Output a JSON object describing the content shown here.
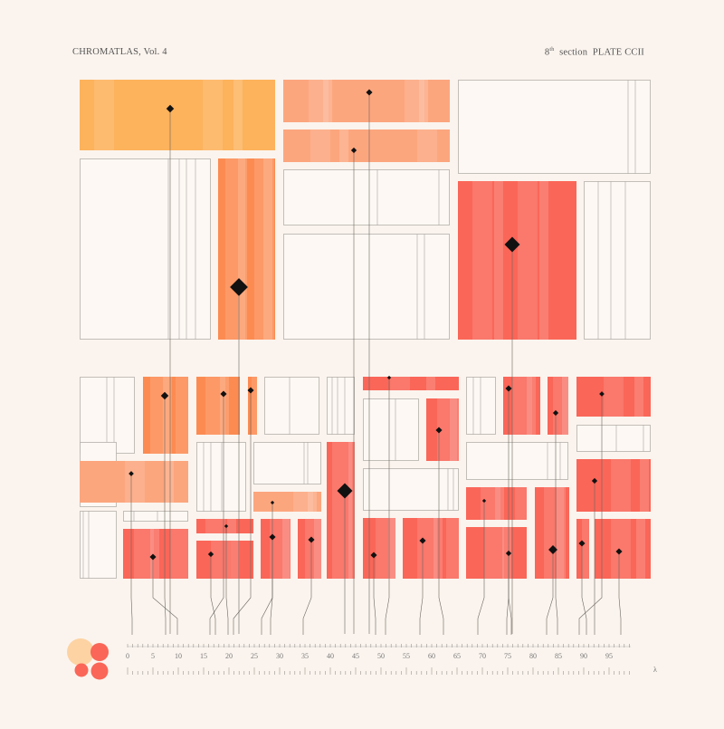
{
  "header": {
    "title": "CHROMATLAS, Vol. 4",
    "section_number": "8",
    "section_suffix": "th",
    "section_word": "section",
    "plate": "PLATE CCII"
  },
  "scale": {
    "ticks": [
      "0",
      "5",
      "10",
      "15",
      "20",
      "25",
      "30",
      "35",
      "40",
      "45",
      "50",
      "55",
      "60",
      "65",
      "70",
      "75",
      "80",
      "85",
      "90",
      "95"
    ],
    "symbol": "λ"
  },
  "palette": {
    "orange_light": "#fdd3a3",
    "orange": "#fdb25c",
    "salmon": "#fca67e",
    "coral": "#fc8b52",
    "red": "#fa6658",
    "outline": "#b5b0ab"
  }
}
